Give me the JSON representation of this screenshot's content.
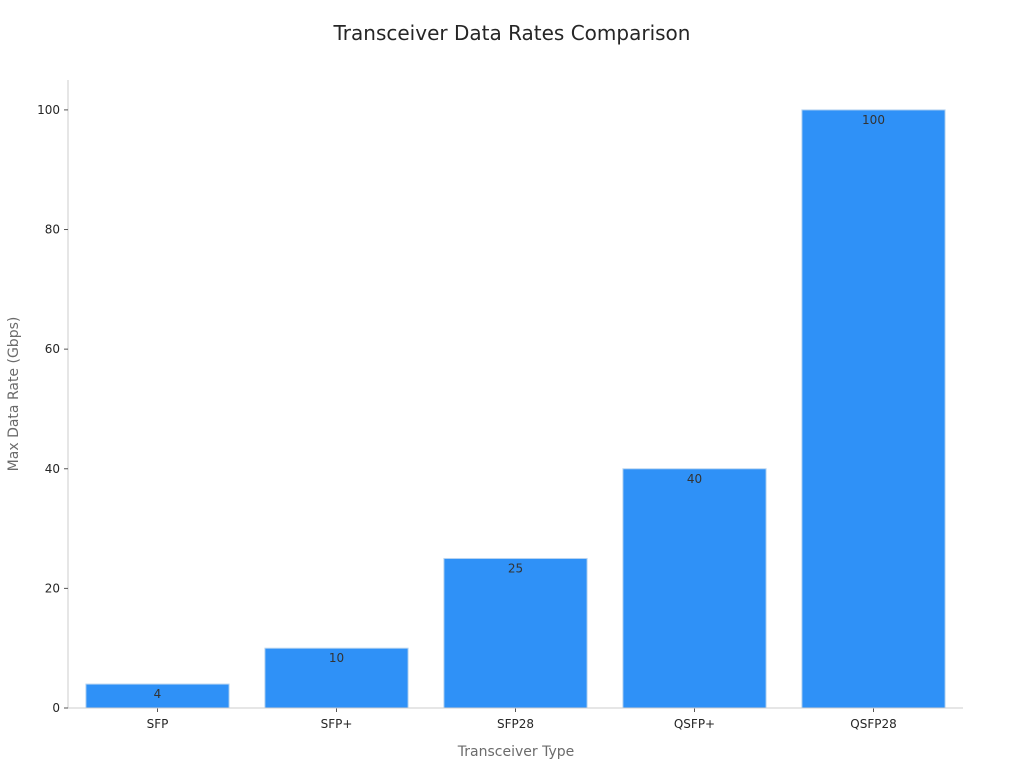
{
  "chart_data": {
    "type": "bar",
    "title": "Transceiver Data Rates Comparison",
    "xlabel": "Transceiver Type",
    "ylabel": "Max Data Rate (Gbps)",
    "categories": [
      "SFP",
      "SFP+",
      "SFP28",
      "QSFP+",
      "QSFP28"
    ],
    "values": [
      4,
      10,
      25,
      40,
      100
    ],
    "data_labels": [
      "4",
      "10",
      "25",
      "40",
      "100"
    ],
    "yticks": [
      0,
      20,
      40,
      60,
      80,
      100
    ],
    "ylim": [
      0,
      105
    ],
    "bar_color": "#2f91f7",
    "grid": false,
    "legend": "none"
  }
}
